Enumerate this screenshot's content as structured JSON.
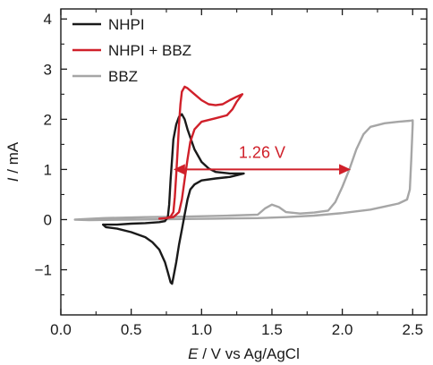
{
  "chart_data": {
    "type": "line",
    "xlabel": {
      "italic": "E",
      "rest": " / V vs Ag/AgCl"
    },
    "ylabel": {
      "italic": "I",
      "rest": " / mA"
    },
    "xlim": [
      0,
      2.6
    ],
    "ylim": [
      -1.9,
      4.2
    ],
    "xticks": [
      0.0,
      0.5,
      1.0,
      1.5,
      2.0,
      2.5
    ],
    "xtick_labels": [
      "0.0",
      "0.5",
      "1.0",
      "1.5",
      "2.0",
      "2.5"
    ],
    "yticks": [
      -1,
      0,
      1,
      2,
      3,
      4
    ],
    "ytick_labels": [
      "−1",
      "0",
      "1",
      "2",
      "3",
      "4"
    ],
    "legend_position": "top-left",
    "grid": false,
    "series": [
      {
        "name": "NHPI",
        "color": "#1a1a1a",
        "points": [
          [
            0.3,
            -0.1
          ],
          [
            0.4,
            -0.1
          ],
          [
            0.5,
            -0.08
          ],
          [
            0.6,
            -0.07
          ],
          [
            0.7,
            -0.05
          ],
          [
            0.74,
            -0.03
          ],
          [
            0.76,
            0.05
          ],
          [
            0.77,
            0.3
          ],
          [
            0.78,
            0.8
          ],
          [
            0.79,
            1.2
          ],
          [
            0.8,
            1.6
          ],
          [
            0.82,
            1.9
          ],
          [
            0.84,
            2.05
          ],
          [
            0.86,
            2.1
          ],
          [
            0.88,
            2.0
          ],
          [
            0.9,
            1.8
          ],
          [
            0.95,
            1.4
          ],
          [
            1.0,
            1.15
          ],
          [
            1.05,
            1.02
          ],
          [
            1.1,
            0.95
          ],
          [
            1.2,
            0.92
          ],
          [
            1.3,
            0.92
          ],
          [
            1.2,
            0.85
          ],
          [
            1.1,
            0.82
          ],
          [
            1.0,
            0.78
          ],
          [
            0.95,
            0.7
          ],
          [
            0.92,
            0.6
          ],
          [
            0.9,
            0.4
          ],
          [
            0.88,
            0.1
          ],
          [
            0.86,
            -0.2
          ],
          [
            0.84,
            -0.5
          ],
          [
            0.82,
            -0.85
          ],
          [
            0.8,
            -1.15
          ],
          [
            0.79,
            -1.28
          ],
          [
            0.78,
            -1.25
          ],
          [
            0.76,
            -1.05
          ],
          [
            0.74,
            -0.85
          ],
          [
            0.7,
            -0.6
          ],
          [
            0.65,
            -0.45
          ],
          [
            0.6,
            -0.35
          ],
          [
            0.5,
            -0.25
          ],
          [
            0.4,
            -0.18
          ],
          [
            0.32,
            -0.15
          ],
          [
            0.3,
            -0.1
          ]
        ]
      },
      {
        "name": "NHPI + BBZ",
        "color": "#d0202a",
        "points": [
          [
            0.7,
            0.02
          ],
          [
            0.75,
            0.03
          ],
          [
            0.78,
            0.06
          ],
          [
            0.8,
            0.15
          ],
          [
            0.81,
            0.45
          ],
          [
            0.82,
            0.9
          ],
          [
            0.83,
            1.4
          ],
          [
            0.84,
            1.9
          ],
          [
            0.85,
            2.3
          ],
          [
            0.86,
            2.55
          ],
          [
            0.88,
            2.65
          ],
          [
            0.9,
            2.62
          ],
          [
            0.95,
            2.5
          ],
          [
            1.0,
            2.38
          ],
          [
            1.05,
            2.3
          ],
          [
            1.1,
            2.28
          ],
          [
            1.15,
            2.3
          ],
          [
            1.2,
            2.38
          ],
          [
            1.25,
            2.45
          ],
          [
            1.29,
            2.5
          ],
          [
            1.25,
            2.35
          ],
          [
            1.22,
            2.2
          ],
          [
            1.18,
            2.08
          ],
          [
            1.1,
            2.02
          ],
          [
            1.0,
            1.95
          ],
          [
            0.95,
            1.8
          ],
          [
            0.92,
            1.55
          ],
          [
            0.9,
            1.2
          ],
          [
            0.88,
            0.8
          ],
          [
            0.86,
            0.4
          ],
          [
            0.84,
            0.15
          ],
          [
            0.8,
            0.05
          ],
          [
            0.75,
            0.03
          ],
          [
            0.7,
            0.02
          ]
        ]
      },
      {
        "name": "BBZ",
        "color": "#a6a6a6",
        "points": [
          [
            0.1,
            0.0
          ],
          [
            0.3,
            0.03
          ],
          [
            0.6,
            0.05
          ],
          [
            0.9,
            0.06
          ],
          [
            1.2,
            0.08
          ],
          [
            1.4,
            0.1
          ],
          [
            1.45,
            0.22
          ],
          [
            1.5,
            0.3
          ],
          [
            1.55,
            0.25
          ],
          [
            1.6,
            0.15
          ],
          [
            1.7,
            0.12
          ],
          [
            1.8,
            0.14
          ],
          [
            1.9,
            0.18
          ],
          [
            1.95,
            0.35
          ],
          [
            2.0,
            0.65
          ],
          [
            2.05,
            1.0
          ],
          [
            2.1,
            1.4
          ],
          [
            2.15,
            1.7
          ],
          [
            2.2,
            1.85
          ],
          [
            2.3,
            1.92
          ],
          [
            2.4,
            1.95
          ],
          [
            2.48,
            1.97
          ],
          [
            2.5,
            1.98
          ],
          [
            2.5,
            1.9
          ],
          [
            2.49,
            1.2
          ],
          [
            2.48,
            0.6
          ],
          [
            2.46,
            0.4
          ],
          [
            2.4,
            0.32
          ],
          [
            2.3,
            0.26
          ],
          [
            2.2,
            0.2
          ],
          [
            2.0,
            0.13
          ],
          [
            1.8,
            0.08
          ],
          [
            1.6,
            0.05
          ],
          [
            1.4,
            0.03
          ],
          [
            1.1,
            0.02
          ],
          [
            0.8,
            0.01
          ],
          [
            0.5,
            0.0
          ],
          [
            0.2,
            -0.01
          ],
          [
            0.1,
            0.0
          ]
        ]
      }
    ],
    "annotations": [
      {
        "text": "1.26 V",
        "x_from": 0.8,
        "x_to": 2.06,
        "y": 1.0,
        "color": "#d0202a"
      }
    ]
  }
}
